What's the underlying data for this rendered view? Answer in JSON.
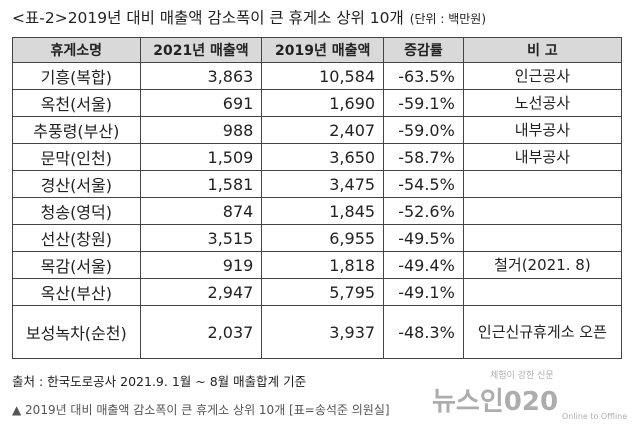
{
  "title": "<표-2>2019년 대비 매출액 감소폭이 큰 휴게소 상위 10개",
  "unit": "(단위 : 백만원)",
  "table": {
    "header": [
      "휴게소명",
      "2021년 매출액",
      "2019년 매출액",
      "증감률",
      "비 고"
    ],
    "rows": [
      [
        "기흥(복합)",
        "3,863",
        "10,584",
        "-63.5%",
        "인근공사"
      ],
      [
        "옥천(서울)",
        "691",
        "1,690",
        "-59.1%",
        "노선공사"
      ],
      [
        "추풍령(부산)",
        "988",
        "2,407",
        "-59.0%",
        "내부공사"
      ],
      [
        "문막(인천)",
        "1,509",
        "3,650",
        "-58.7%",
        "내부공사"
      ],
      [
        "경산(서울)",
        "1,581",
        "3,475",
        "-54.5%",
        ""
      ],
      [
        "청송(영덕)",
        "874",
        "1,845",
        "-52.6%",
        ""
      ],
      [
        "선산(창원)",
        "3,515",
        "6,955",
        "-49.5%",
        ""
      ],
      [
        "목감(서울)",
        "919",
        "1,818",
        "-49.4%",
        "철거(2021. 8)"
      ],
      [
        "옥산(부산)",
        "2,947",
        "5,795",
        "-49.1%",
        ""
      ],
      [
        "보성녹차(순천)",
        "2,037",
        "3,937",
        "-48.3%",
        "인근신규휴게소 오픈"
      ]
    ]
  },
  "source": "출처 : 한국도로공사 2021.9. 1월 ~ 8월 매출합계 기준",
  "caption": "▲ 2019년 대비 매출액 감소폭이 큰 휴게소 상위 10개 [표=송석준 의원실]",
  "watermark": {
    "tagline": "체험이 강한 신문",
    "name": "뉴스인020",
    "sub": "Online to Offline"
  }
}
